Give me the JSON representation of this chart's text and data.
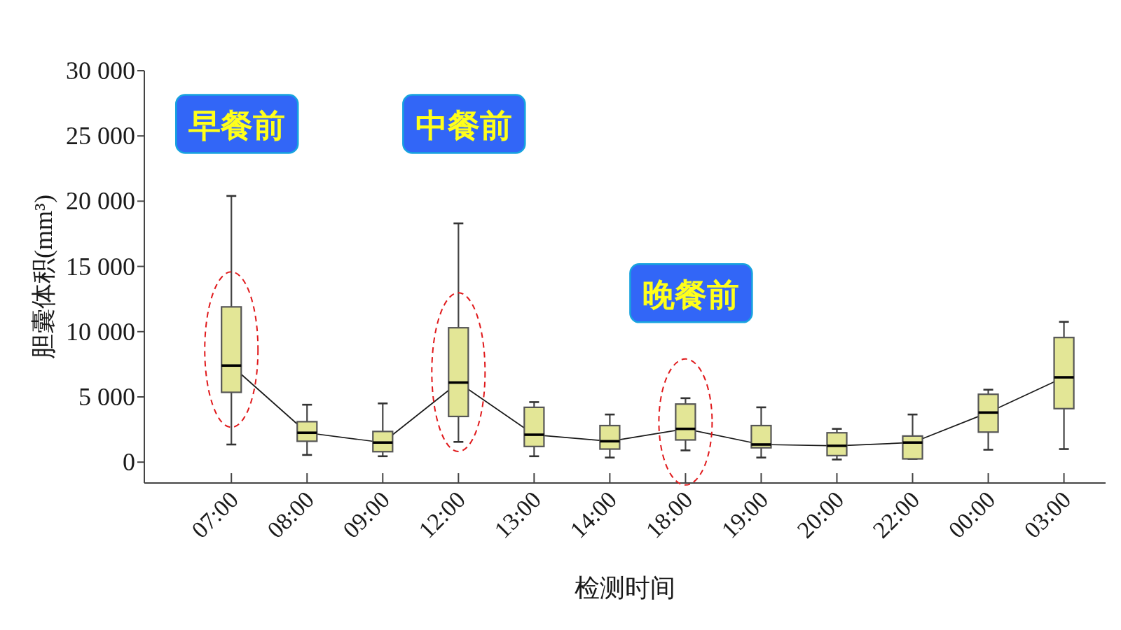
{
  "chart_data": {
    "type": "box",
    "xlabel": "检测时间",
    "ylabel": "胆囊体积(mm³)",
    "categories": [
      "07:00",
      "08:00",
      "09:00",
      "12:00",
      "13:00",
      "14:00",
      "18:00",
      "19:00",
      "20:00",
      "22:00",
      "00:00",
      "03:00"
    ],
    "series": [
      {
        "color": "#e3e696",
        "boxes": [
          {
            "low": 1350,
            "q1": 5350,
            "median": 7400,
            "q3": 11900,
            "high": 20400
          },
          {
            "low": 550,
            "q1": 1600,
            "median": 2250,
            "q3": 3100,
            "high": 4400
          },
          {
            "low": 450,
            "q1": 800,
            "median": 1500,
            "q3": 2350,
            "high": 4500
          },
          {
            "low": 1550,
            "q1": 3500,
            "median": 6100,
            "q3": 10300,
            "high": 18300
          },
          {
            "low": 450,
            "q1": 1200,
            "median": 2100,
            "q3": 4200,
            "high": 4600
          },
          {
            "low": 350,
            "q1": 1000,
            "median": 1600,
            "q3": 2800,
            "high": 3650
          },
          {
            "low": 900,
            "q1": 1700,
            "median": 2550,
            "q3": 4450,
            "high": 4900
          },
          {
            "low": 350,
            "q1": 1100,
            "median": 1350,
            "q3": 2800,
            "high": 4200
          },
          {
            "low": 200,
            "q1": 500,
            "median": 1250,
            "q3": 2250,
            "high": 2550
          },
          {
            "low": 250,
            "q1": 250,
            "median": 1500,
            "q3": 2000,
            "high": 3650
          },
          {
            "low": 950,
            "q1": 2300,
            "median": 3800,
            "q3": 5200,
            "high": 5550
          },
          {
            "low": 1000,
            "q1": 4100,
            "median": 6500,
            "q3": 9550,
            "high": 10750
          }
        ]
      },
      {
        "type": "line",
        "color": "#1a1a1a",
        "values": [
          7400,
          2250,
          1500,
          6100,
          2100,
          1600,
          2550,
          1350,
          1250,
          1500,
          3800,
          6500
        ]
      }
    ],
    "ylim": [
      -1600,
      30000
    ],
    "yticks": [
      0,
      {
        "value": 5000,
        "label": "5 000"
      },
      {
        "value": 10000,
        "label": "10 000"
      },
      {
        "value": 15000,
        "label": "15 000"
      },
      {
        "value": 20000,
        "label": "20 000"
      },
      {
        "value": 25000,
        "label": "25 000"
      },
      {
        "value": 30000,
        "label": "30 000"
      }
    ],
    "annotations": [
      {
        "text": "早餐前",
        "x": "07:00",
        "y": 20400
      },
      {
        "text": "中餐前",
        "x": "12:00",
        "y": 18300
      },
      {
        "text": "晚餐前",
        "x": "18:00",
        "y": 4900
      }
    ]
  }
}
